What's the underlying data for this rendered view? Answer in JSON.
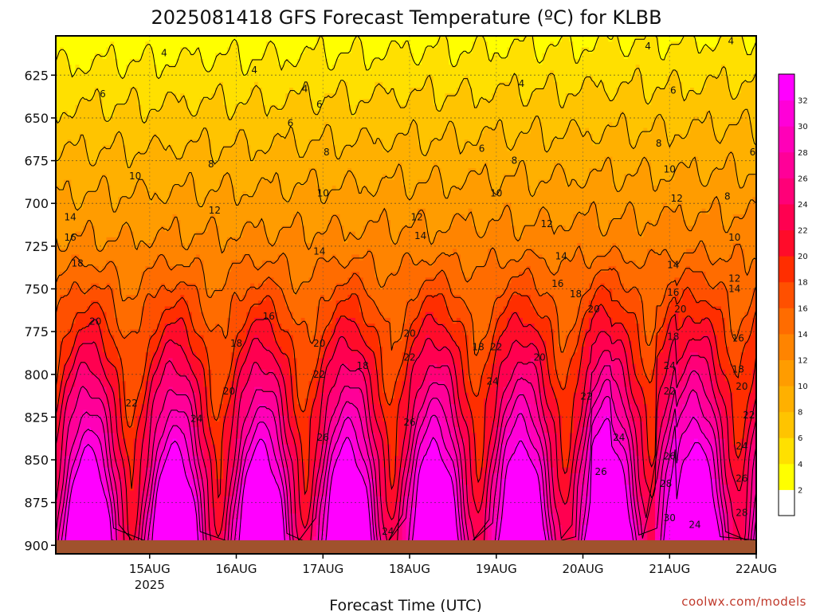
{
  "chart_data": {
    "type": "heatmap",
    "title": "2025081418 GFS Forecast Temperature (ºC) for KLBB",
    "xlabel": "Forecast Time (UTC)",
    "ylabel": "",
    "credit": "coolwx.com/models",
    "y_axis": {
      "reversed": true,
      "range": [
        602,
        905
      ],
      "ticks": [
        625,
        650,
        675,
        700,
        725,
        750,
        775,
        800,
        825,
        850,
        875,
        900
      ]
    },
    "x_axis": {
      "range_hours": [
        -20,
        174
      ],
      "ticks": [
        {
          "label": "15AUG",
          "sublabel": "2025",
          "hour": 6
        },
        {
          "label": "16AUG",
          "hour": 30
        },
        {
          "label": "17AUG",
          "hour": 54
        },
        {
          "label": "18AUG",
          "hour": 78
        },
        {
          "label": "19AUG",
          "hour": 102
        },
        {
          "label": "20AUG",
          "hour": 126
        },
        {
          "label": "21AUG",
          "hour": 150
        },
        {
          "label": "22AUG",
          "hour": 174
        }
      ]
    },
    "grid": true,
    "colorbar": {
      "position": "right",
      "levels": [
        0,
        2,
        4,
        6,
        8,
        10,
        12,
        14,
        16,
        18,
        20,
        22,
        24,
        26,
        28,
        30,
        32,
        34
      ],
      "labels": [
        2,
        4,
        6,
        8,
        10,
        12,
        14,
        16,
        18,
        20,
        22,
        24,
        26,
        28,
        30,
        32
      ],
      "colors": [
        "#ffffff",
        "#ffff00",
        "#ffe000",
        "#ffc400",
        "#ffb000",
        "#ff9c00",
        "#ff8400",
        "#ff6c00",
        "#ff5000",
        "#ff2e00",
        "#ff0c2a",
        "#ff0050",
        "#ff0078",
        "#ff0098",
        "#ff00b8",
        "#ff00d8",
        "#ff00ff"
      ]
    },
    "ground_color": "#a0522d",
    "contour_labels": [
      {
        "text": "4",
        "hour": 10,
        "p": 612
      },
      {
        "text": "4",
        "hour": 35,
        "p": 622
      },
      {
        "text": "4",
        "hour": 49,
        "p": 633
      },
      {
        "text": "4",
        "hour": 109,
        "p": 630
      },
      {
        "text": "4",
        "hour": 144,
        "p": 608
      },
      {
        "text": "4",
        "hour": 167,
        "p": 605
      },
      {
        "text": "6",
        "hour": -7,
        "p": 636
      },
      {
        "text": "6",
        "hour": 45,
        "p": 653
      },
      {
        "text": "6",
        "hour": 53,
        "p": 642
      },
      {
        "text": "6",
        "hour": 98,
        "p": 668
      },
      {
        "text": "6",
        "hour": 151,
        "p": 634
      },
      {
        "text": "6",
        "hour": 173,
        "p": 670
      },
      {
        "text": "8",
        "hour": 23,
        "p": 677
      },
      {
        "text": "8",
        "hour": 55,
        "p": 670
      },
      {
        "text": "8",
        "hour": 107,
        "p": 675
      },
      {
        "text": "8",
        "hour": 147,
        "p": 665
      },
      {
        "text": "8",
        "hour": 166,
        "p": 696
      },
      {
        "text": "10",
        "hour": 2,
        "p": 684
      },
      {
        "text": "10",
        "hour": 54,
        "p": 694
      },
      {
        "text": "10",
        "hour": 102,
        "p": 694
      },
      {
        "text": "10",
        "hour": 150,
        "p": 680
      },
      {
        "text": "10",
        "hour": 168,
        "p": 720
      },
      {
        "text": "12",
        "hour": 24,
        "p": 704
      },
      {
        "text": "12",
        "hour": 80,
        "p": 708
      },
      {
        "text": "12",
        "hour": 116,
        "p": 712
      },
      {
        "text": "12",
        "hour": 152,
        "p": 697
      },
      {
        "text": "12",
        "hour": 168,
        "p": 744
      },
      {
        "text": "14",
        "hour": -16,
        "p": 708
      },
      {
        "text": "14",
        "hour": 53,
        "p": 728
      },
      {
        "text": "14",
        "hour": 81,
        "p": 719
      },
      {
        "text": "14",
        "hour": 120,
        "p": 731
      },
      {
        "text": "14",
        "hour": 151,
        "p": 736
      },
      {
        "text": "14",
        "hour": 168,
        "p": 750
      },
      {
        "text": "16",
        "hour": -16,
        "p": 720
      },
      {
        "text": "16",
        "hour": 39,
        "p": 766
      },
      {
        "text": "16",
        "hour": 119,
        "p": 747
      },
      {
        "text": "16",
        "hour": 151,
        "p": 752
      },
      {
        "text": "16",
        "hour": 169,
        "p": 779
      },
      {
        "text": "18",
        "hour": -14,
        "p": 735
      },
      {
        "text": "18",
        "hour": 30,
        "p": 782
      },
      {
        "text": "18",
        "hour": 65,
        "p": 795
      },
      {
        "text": "18",
        "hour": 97,
        "p": 784
      },
      {
        "text": "18",
        "hour": 124,
        "p": 753
      },
      {
        "text": "18",
        "hour": 151,
        "p": 778
      },
      {
        "text": "18",
        "hour": 169,
        "p": 797
      },
      {
        "text": "20",
        "hour": -9,
        "p": 769
      },
      {
        "text": "20",
        "hour": 28,
        "p": 810
      },
      {
        "text": "20",
        "hour": 53,
        "p": 782
      },
      {
        "text": "20",
        "hour": 78,
        "p": 776
      },
      {
        "text": "20",
        "hour": 114,
        "p": 790
      },
      {
        "text": "20",
        "hour": 129,
        "p": 762
      },
      {
        "text": "20",
        "hour": 153,
        "p": 762
      },
      {
        "text": "20",
        "hour": 170,
        "p": 807
      },
      {
        "text": "22",
        "hour": 1,
        "p": 817
      },
      {
        "text": "22",
        "hour": 53,
        "p": 800
      },
      {
        "text": "22",
        "hour": 78,
        "p": 790
      },
      {
        "text": "22",
        "hour": 102,
        "p": 784
      },
      {
        "text": "22",
        "hour": 127,
        "p": 813
      },
      {
        "text": "22",
        "hour": 150,
        "p": 810
      },
      {
        "text": "22",
        "hour": 172,
        "p": 824
      },
      {
        "text": "24",
        "hour": 19,
        "p": 826
      },
      {
        "text": "24",
        "hour": 101,
        "p": 804
      },
      {
        "text": "24",
        "hour": 136,
        "p": 837
      },
      {
        "text": "24",
        "hour": 150,
        "p": 795
      },
      {
        "text": "24",
        "hour": 72,
        "p": 892
      },
      {
        "text": "24",
        "hour": 157,
        "p": 888
      },
      {
        "text": "24",
        "hour": 170,
        "p": 842
      },
      {
        "text": "26",
        "hour": 54,
        "p": 837
      },
      {
        "text": "26",
        "hour": 78,
        "p": 828
      },
      {
        "text": "26",
        "hour": 131,
        "p": 857
      },
      {
        "text": "26",
        "hour": 150,
        "p": 848
      },
      {
        "text": "26",
        "hour": 170,
        "p": 861
      },
      {
        "text": "28",
        "hour": 149,
        "p": 864
      },
      {
        "text": "28",
        "hour": 170,
        "p": 881
      },
      {
        "text": "30",
        "hour": 150,
        "p": 884
      }
    ]
  }
}
